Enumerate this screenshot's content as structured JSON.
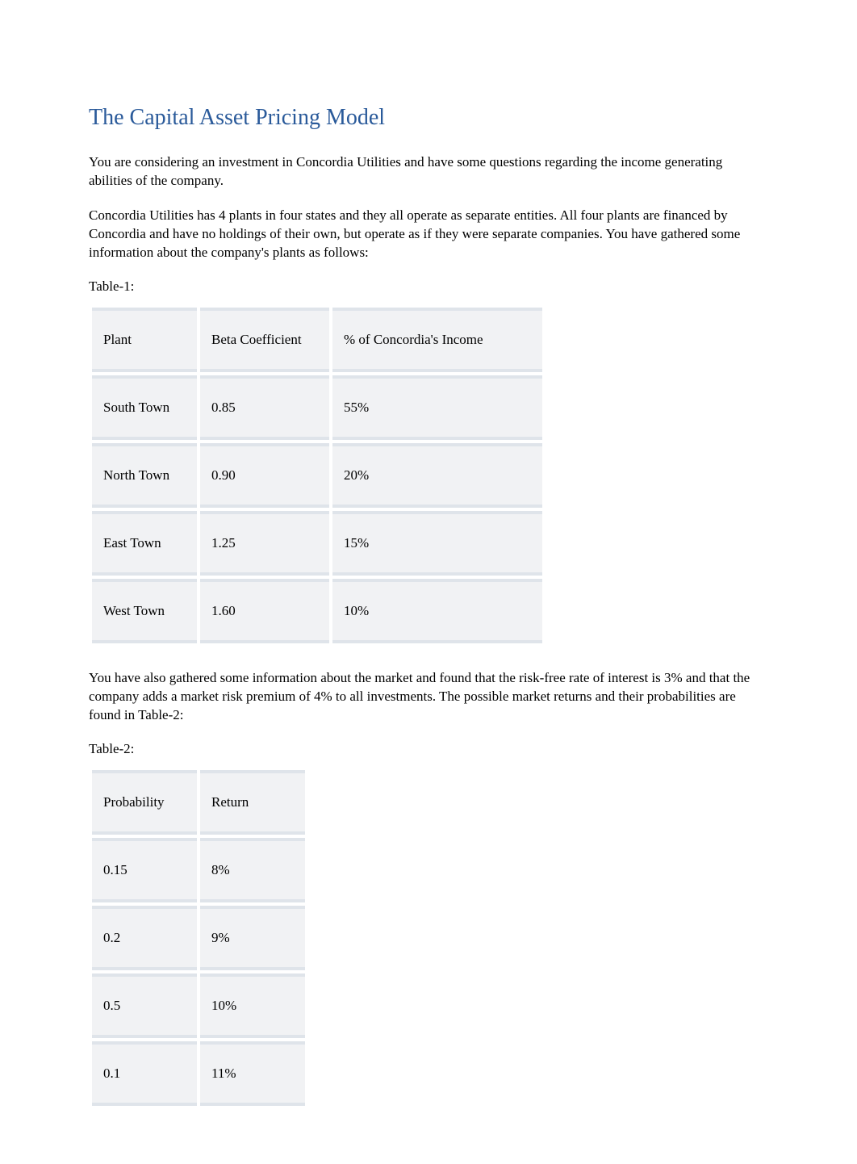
{
  "title": {
    "text": "The Capital Asset Pricing Model",
    "color": "#2a5a9a"
  },
  "paragraphs": {
    "p1": "You are considering an investment in Concordia Utilities and have some questions regarding the income generating abilities of the company.",
    "p2": "Concordia Utilities has 4 plants in four states and they all operate as separate entities. All four plants are financed by Concordia and have no holdings of their own, but operate as if they were separate companies. You have gathered some information about the company's plants as follows:",
    "p3": "You have also gathered some information about the market and found that the risk-free rate of interest is 3% and that the company adds a market risk premium of 4% to all investments. The possible market returns and their probabilities are found in Table-2:"
  },
  "table1": {
    "label": "Table-1:",
    "headers": {
      "c1": "Plant",
      "c2": "Beta Coefficient",
      "c3": "% of Concordia's Income"
    },
    "rows": [
      {
        "c1": "South Town",
        "c2": "0.85",
        "c3": "55%"
      },
      {
        "c1": "North Town",
        "c2": "0.90",
        "c3": "20%"
      },
      {
        "c1": "East Town",
        "c2": "1.25",
        "c3": "15%"
      },
      {
        "c1": "West Town",
        "c2": "1.60",
        "c3": "10%"
      }
    ],
    "row_bg": "#f1f2f4",
    "border_color": "#dfe4ea"
  },
  "table2": {
    "label": "Table-2:",
    "headers": {
      "c1": "Probability",
      "c2": "Return"
    },
    "rows": [
      {
        "c1": "0.15",
        "c2": "8%"
      },
      {
        "c1": "0.2",
        "c2": "9%"
      },
      {
        "c1": "0.5",
        "c2": "10%"
      },
      {
        "c1": "0.1",
        "c2": "11%"
      }
    ],
    "row_bg": "#f1f2f4",
    "border_color": "#dfe4ea"
  },
  "text_color": "#000000",
  "background_color": "#ffffff",
  "body_fontsize": 17,
  "title_fontsize": 28
}
